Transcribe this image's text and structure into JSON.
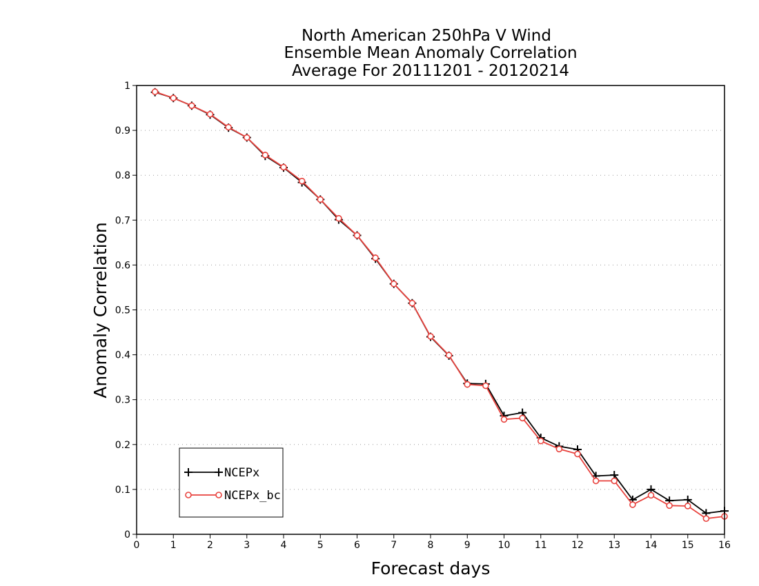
{
  "chart_data": {
    "type": "line",
    "title": [
      "North American 250hPa V Wind",
      "Ensemble Mean Anomaly Correlation",
      "Average For 20111201 - 20120214"
    ],
    "xlabel": "Forecast days",
    "ylabel": "Anomaly Correlation",
    "xlim": [
      0,
      16
    ],
    "ylim": [
      0,
      1
    ],
    "x_ticks": [
      "0",
      "1",
      "2",
      "3",
      "4",
      "5",
      "6",
      "7",
      "8",
      "9",
      "10",
      "11",
      "12",
      "13",
      "14",
      "15",
      "16"
    ],
    "y_ticks": [
      "0",
      "0.1",
      "0.2",
      "0.3",
      "0.4",
      "0.5",
      "0.6",
      "0.7",
      "0.8",
      "0.9",
      "1"
    ],
    "grid": "horizontal dotted",
    "legend_position": "bottom-left",
    "x": [
      0.5,
      1,
      1.5,
      2,
      2.5,
      3,
      3.5,
      4,
      4.5,
      5,
      5.5,
      6,
      6.5,
      7,
      7.5,
      8,
      8.5,
      9,
      9.5,
      10,
      10.5,
      11,
      11.5,
      12,
      12.5,
      13,
      13.5,
      14,
      14.5,
      15,
      15.5,
      16
    ],
    "series": [
      {
        "name": "NCEPx",
        "color": "#000000",
        "marker": "plus",
        "values": [
          0.985,
          0.972,
          0.955,
          0.935,
          0.906,
          0.884,
          0.843,
          0.817,
          0.784,
          0.746,
          0.701,
          0.666,
          0.614,
          0.558,
          0.515,
          0.44,
          0.398,
          0.336,
          0.335,
          0.264,
          0.271,
          0.215,
          0.196,
          0.189,
          0.13,
          0.132,
          0.077,
          0.1,
          0.075,
          0.077,
          0.047,
          0.052
        ]
      },
      {
        "name": "NCEPx_bc",
        "color": "#e8413c",
        "marker": "circle",
        "values": [
          0.986,
          0.972,
          0.955,
          0.936,
          0.907,
          0.884,
          0.845,
          0.818,
          0.787,
          0.746,
          0.704,
          0.666,
          0.616,
          0.558,
          0.515,
          0.441,
          0.399,
          0.334,
          0.331,
          0.256,
          0.259,
          0.208,
          0.19,
          0.179,
          0.119,
          0.119,
          0.066,
          0.087,
          0.064,
          0.063,
          0.035,
          0.04
        ]
      }
    ]
  }
}
